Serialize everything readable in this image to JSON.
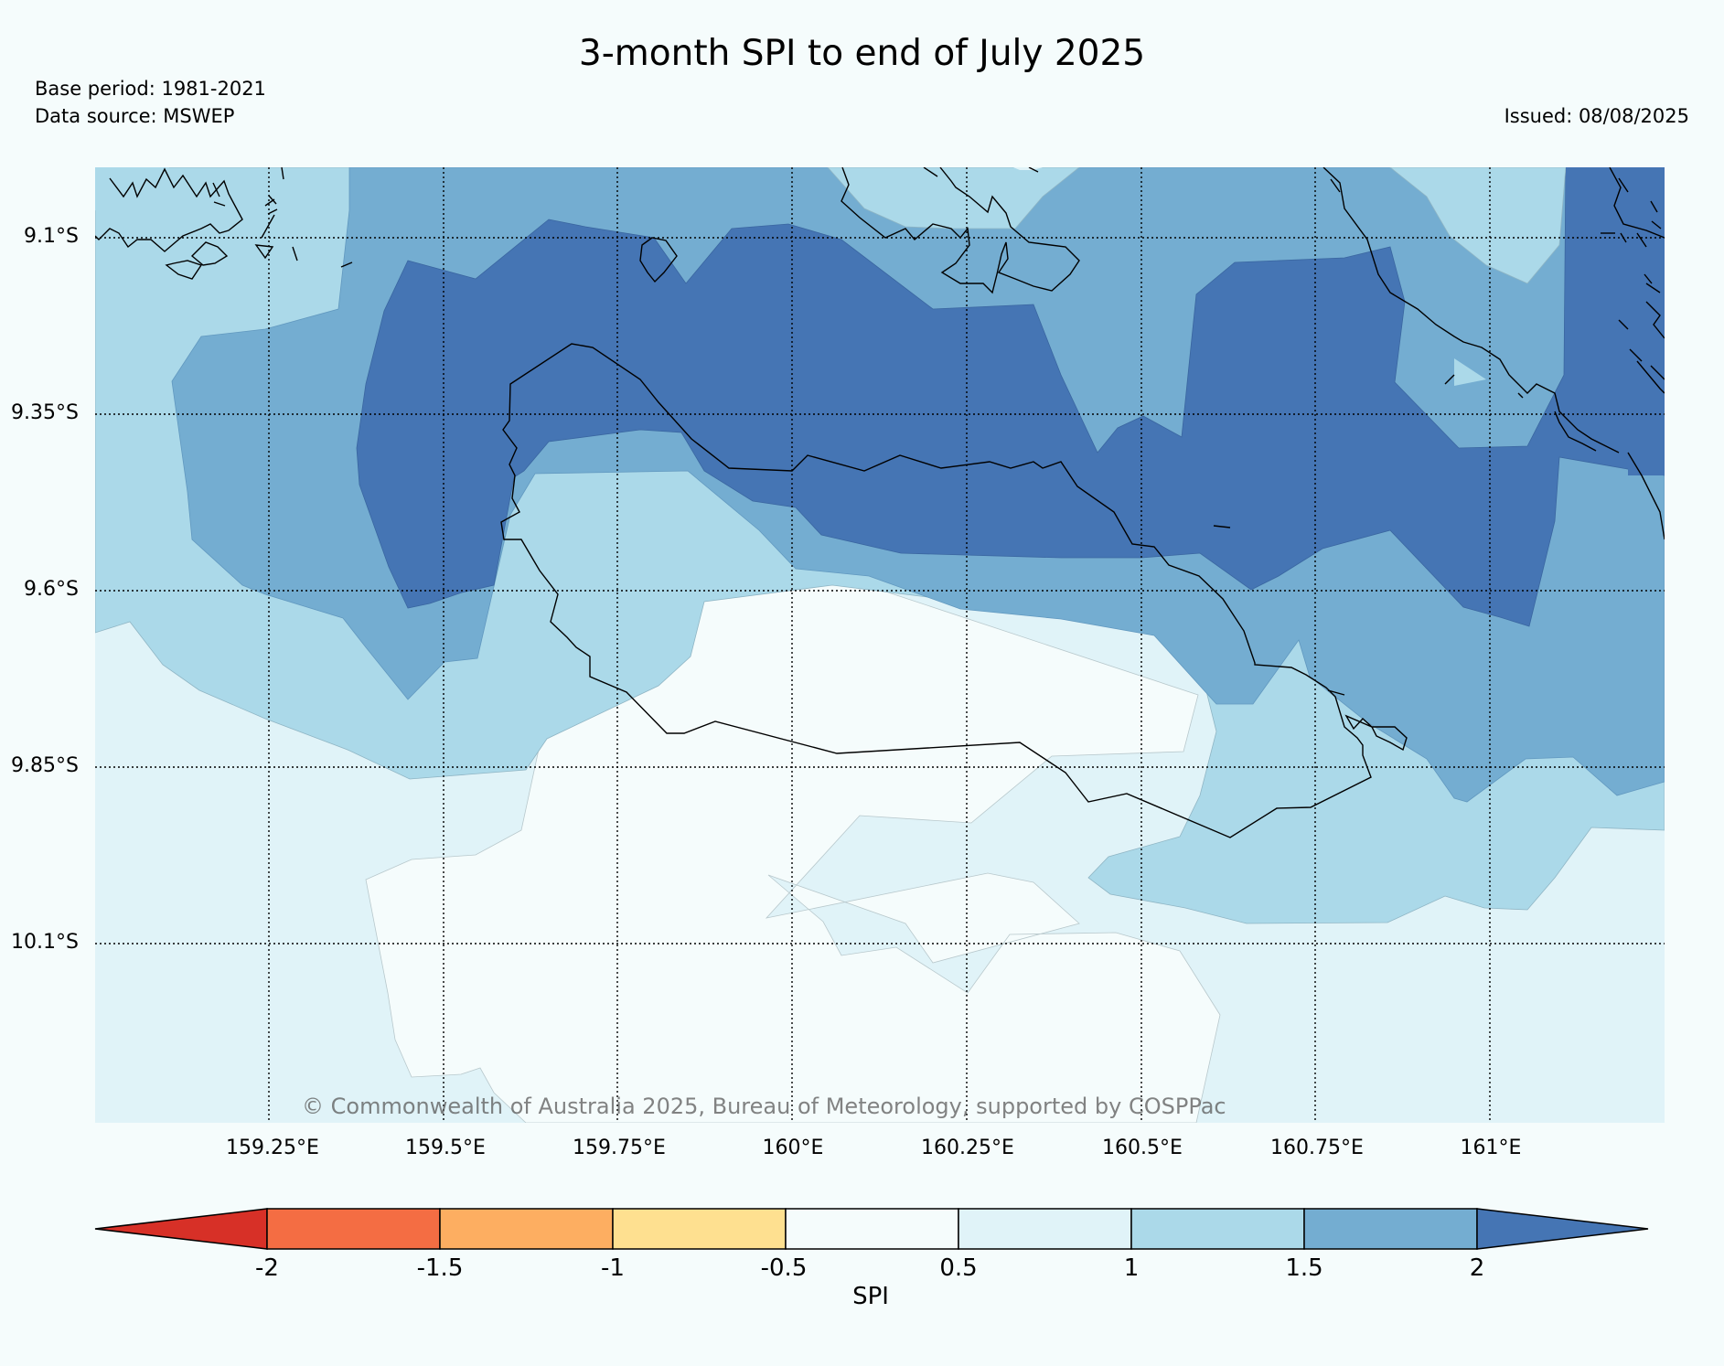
{
  "title": "3-month SPI to end of July 2025",
  "base_period": "Base period: 1981-2021",
  "data_source": "Data source: MSWEP",
  "issued": "Issued: 08/08/2025",
  "copyright": "© Commonwealth of Australia 2025, Bureau of Meteorology, supported by COSPPac",
  "map": {
    "latitude_labels": [
      "9.1°S",
      "9.35°S",
      "9.6°S",
      "9.85°S",
      "10.1°S"
    ],
    "longitude_labels": [
      "159.25°E",
      "159.5°E",
      "159.75°E",
      "160°E",
      "160.25°E",
      "160.5°E",
      "160.75°E",
      "161°E"
    ],
    "graticule": "dotted"
  },
  "colorbar": {
    "label": "SPI",
    "ticks": [
      "-2",
      "-1.5",
      "-1",
      "-0.5",
      "0.5",
      "1",
      "1.5",
      "2"
    ],
    "extend": "both",
    "colors": {
      "below_-2": "#d73027",
      "-2_to_-1.5": "#f46d43",
      "-1.5_to_-1": "#fdae61",
      "-1_to_-0.5": "#fee090",
      "-0.5_to_0.5": "#f5fcfc",
      "0.5_to_1": "#e0f3f8",
      "1_to_1.5": "#abd9e9",
      "1.5_to_2": "#74add1",
      "above_2": "#4575b4"
    }
  }
}
